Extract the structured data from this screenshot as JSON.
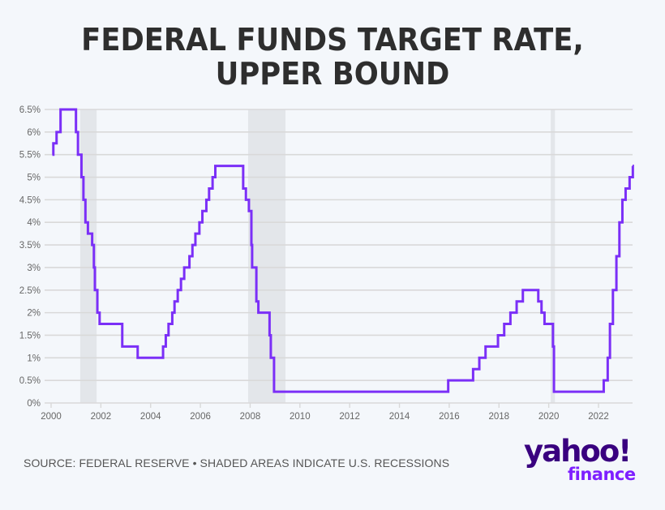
{
  "header": {
    "title_line1": "FEDERAL FUNDS TARGET RATE,",
    "title_line2": "UPPER BOUND"
  },
  "footer": {
    "source": "SOURCE: FEDERAL RESERVE • SHADED AREAS INDICATE U.S. RECESSIONS",
    "logo_main": "yahoo!",
    "logo_sub": "finance"
  },
  "colors": {
    "line": "#7b2ff7",
    "recession": "#e3e6ea",
    "grid": "#d9d9d9",
    "title": "#2e2e2e",
    "background": "#f4f7fb",
    "logo_main": "#39007f",
    "logo_sub": "#7e1fff"
  },
  "chart_data": {
    "type": "line",
    "step": true,
    "title": "FEDERAL FUNDS TARGET RATE, UPPER BOUND",
    "xlabel": "",
    "ylabel": "",
    "xlim": [
      2000,
      2023.4
    ],
    "ylim": [
      0,
      6.5
    ],
    "grid": true,
    "legend": "none",
    "x_ticks": [
      2000,
      2002,
      2004,
      2006,
      2008,
      2010,
      2012,
      2014,
      2016,
      2018,
      2020,
      2022
    ],
    "x_tick_labels": [
      "2000",
      "2002",
      "2004",
      "2006",
      "2008",
      "2010",
      "2012",
      "2014",
      "2016",
      "2018",
      "2020",
      "2022"
    ],
    "y_ticks": [
      0,
      0.5,
      1,
      1.5,
      2,
      2.5,
      3,
      3.5,
      4,
      4.5,
      5,
      5.5,
      6,
      6.5
    ],
    "y_tick_labels": [
      "0%",
      "0.5%",
      "1%",
      "1.5%",
      "2%",
      "2.5%",
      "3%",
      "3.5%",
      "4%",
      "4.5%",
      "5%",
      "5.5%",
      "6%",
      "6.5%"
    ],
    "recessions": [
      {
        "start": 2001.17,
        "end": 2001.83
      },
      {
        "start": 2007.92,
        "end": 2009.42
      },
      {
        "start": 2020.08,
        "end": 2020.25
      }
    ],
    "series": [
      {
        "name": "Federal funds target rate, upper bound (%)",
        "points": [
          [
            2000.05,
            5.5
          ],
          [
            2000.09,
            5.75
          ],
          [
            2000.22,
            6.0
          ],
          [
            2000.38,
            6.5
          ],
          [
            2001.0,
            6.0
          ],
          [
            2001.08,
            5.5
          ],
          [
            2001.22,
            5.0
          ],
          [
            2001.3,
            4.5
          ],
          [
            2001.38,
            4.0
          ],
          [
            2001.48,
            3.75
          ],
          [
            2001.65,
            3.5
          ],
          [
            2001.72,
            3.0
          ],
          [
            2001.76,
            2.5
          ],
          [
            2001.86,
            2.0
          ],
          [
            2001.95,
            1.75
          ],
          [
            2002.86,
            1.25
          ],
          [
            2003.48,
            1.0
          ],
          [
            2004.5,
            1.25
          ],
          [
            2004.61,
            1.5
          ],
          [
            2004.72,
            1.75
          ],
          [
            2004.87,
            2.0
          ],
          [
            2004.96,
            2.25
          ],
          [
            2005.09,
            2.5
          ],
          [
            2005.22,
            2.75
          ],
          [
            2005.35,
            3.0
          ],
          [
            2005.56,
            3.25
          ],
          [
            2005.68,
            3.5
          ],
          [
            2005.8,
            3.75
          ],
          [
            2005.96,
            4.0
          ],
          [
            2006.08,
            4.25
          ],
          [
            2006.24,
            4.5
          ],
          [
            2006.35,
            4.75
          ],
          [
            2006.49,
            5.0
          ],
          [
            2006.6,
            5.25
          ],
          [
            2007.72,
            4.75
          ],
          [
            2007.83,
            4.5
          ],
          [
            2007.95,
            4.25
          ],
          [
            2008.05,
            3.5
          ],
          [
            2008.08,
            3.0
          ],
          [
            2008.25,
            2.25
          ],
          [
            2008.33,
            2.0
          ],
          [
            2008.78,
            1.5
          ],
          [
            2008.83,
            1.0
          ],
          [
            2008.96,
            0.25
          ],
          [
            2015.96,
            0.5
          ],
          [
            2016.96,
            0.75
          ],
          [
            2017.21,
            1.0
          ],
          [
            2017.46,
            1.25
          ],
          [
            2017.96,
            1.5
          ],
          [
            2018.21,
            1.75
          ],
          [
            2018.46,
            2.0
          ],
          [
            2018.71,
            2.25
          ],
          [
            2018.96,
            2.5
          ],
          [
            2019.58,
            2.25
          ],
          [
            2019.71,
            2.0
          ],
          [
            2019.83,
            1.75
          ],
          [
            2020.17,
            1.25
          ],
          [
            2020.21,
            0.25
          ],
          [
            2022.21,
            0.5
          ],
          [
            2022.37,
            1.0
          ],
          [
            2022.46,
            1.75
          ],
          [
            2022.58,
            2.5
          ],
          [
            2022.72,
            3.25
          ],
          [
            2022.84,
            4.0
          ],
          [
            2022.96,
            4.5
          ],
          [
            2023.09,
            4.75
          ],
          [
            2023.25,
            5.0
          ],
          [
            2023.38,
            5.25
          ]
        ]
      }
    ]
  }
}
